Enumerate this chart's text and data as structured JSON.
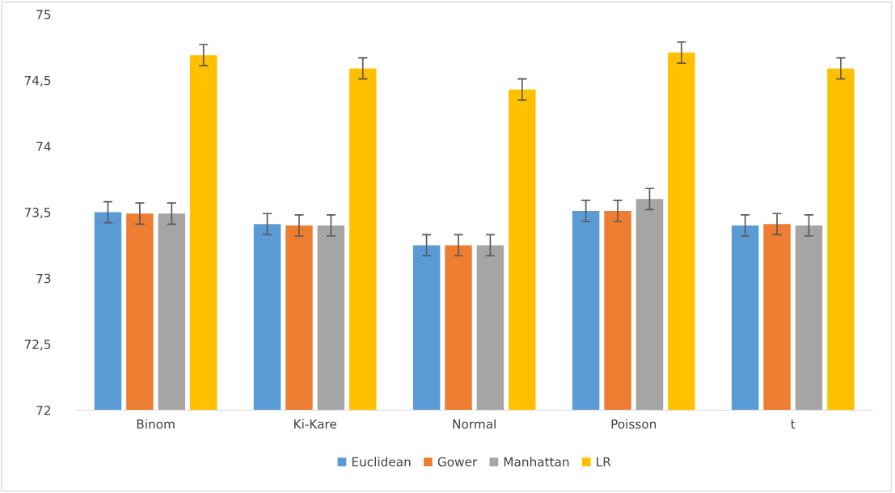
{
  "chart_data": {
    "type": "bar",
    "categories": [
      "Binom",
      "Ki-Kare",
      "Normal",
      "Poisson",
      "t"
    ],
    "series": [
      {
        "name": "Euclidean",
        "color": "#5b9bd5",
        "values": [
          73.5,
          73.41,
          73.25,
          73.51,
          73.4
        ],
        "errors": [
          0.08,
          0.08,
          0.08,
          0.08,
          0.08
        ]
      },
      {
        "name": "Gower",
        "color": "#ed7d31",
        "values": [
          73.49,
          73.4,
          73.25,
          73.51,
          73.41
        ],
        "errors": [
          0.08,
          0.08,
          0.08,
          0.08,
          0.08
        ]
      },
      {
        "name": "Manhattan",
        "color": "#a5a5a5",
        "values": [
          73.49,
          73.4,
          73.25,
          73.6,
          73.4
        ],
        "errors": [
          0.08,
          0.08,
          0.08,
          0.08,
          0.08
        ]
      },
      {
        "name": "LR",
        "color": "#ffc000",
        "values": [
          74.69,
          74.59,
          74.43,
          74.71,
          74.59
        ],
        "errors": [
          0.08,
          0.08,
          0.08,
          0.08,
          0.08
        ]
      }
    ],
    "ylim": [
      72,
      75
    ],
    "yticks": [
      72,
      {
        "value": 72.5,
        "label": "72,5"
      },
      73,
      {
        "value": 73.5,
        "label": "73,5"
      },
      74,
      {
        "value": 74.5,
        "label": "74,5"
      },
      75
    ],
    "grid": false,
    "legend": "bottom"
  }
}
